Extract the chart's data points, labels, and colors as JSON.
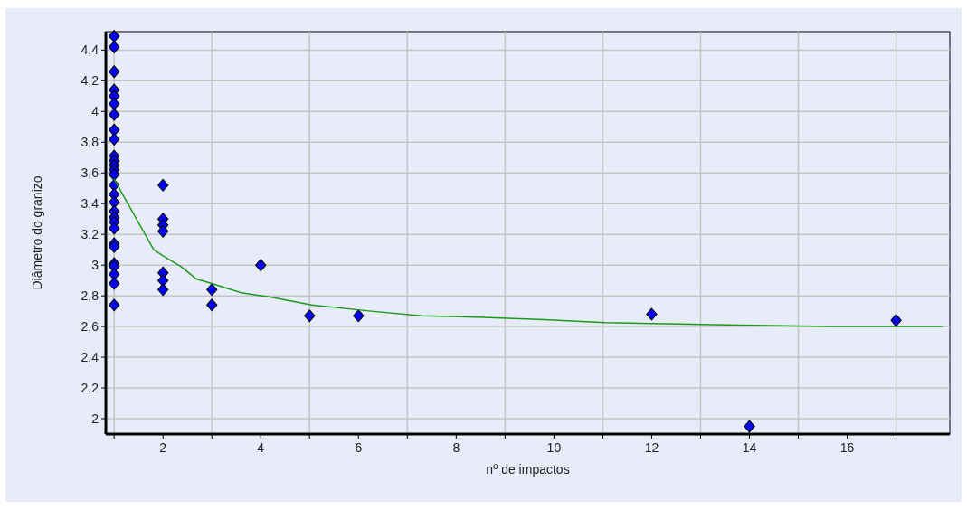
{
  "chart_data": {
    "type": "scatter",
    "xlabel": "nº de impactos",
    "ylabel": "Diâmetro do granizo",
    "xlim": [
      0.83,
      18.1
    ],
    "ylim": [
      1.9,
      4.52
    ],
    "xticks": [
      {
        "value": 1,
        "label": null
      },
      2,
      {
        "value": 3,
        "label": null
      },
      4,
      {
        "value": 5,
        "label": null
      },
      6,
      {
        "value": 7,
        "label": null
      },
      8,
      {
        "value": 9,
        "label": null
      },
      10,
      {
        "value": 11,
        "label": null
      },
      12,
      {
        "value": 13,
        "label": null
      },
      14,
      {
        "value": 15,
        "label": null
      },
      16,
      {
        "value": 17,
        "label": null
      }
    ],
    "yticks": [
      {
        "value": 2,
        "label": "2"
      },
      {
        "value": 2.2,
        "label": "2,2"
      },
      {
        "value": 2.4,
        "label": "2,4"
      },
      {
        "value": 2.6,
        "label": "2,6"
      },
      {
        "value": 2.8,
        "label": "2,8"
      },
      {
        "value": 3,
        "label": "3"
      },
      {
        "value": 3.2,
        "label": "3,2"
      },
      {
        "value": 3.4,
        "label": "3,4"
      },
      {
        "value": 3.6,
        "label": "3,6"
      },
      {
        "value": 3.8,
        "label": "3,8"
      },
      {
        "value": 4,
        "label": "4"
      },
      {
        "value": 4.2,
        "label": "4,2"
      },
      {
        "value": 4.4,
        "label": "4,4"
      }
    ],
    "grid": true,
    "marker": "diamond",
    "series": [
      {
        "color": "#0000ff",
        "x": [
          1,
          1,
          1,
          1,
          1,
          1,
          1,
          1,
          1,
          1,
          1,
          1,
          1,
          1,
          1,
          1,
          1,
          1,
          1,
          1,
          1,
          1,
          1,
          1,
          1,
          1,
          1,
          1,
          2,
          2,
          2,
          2,
          2,
          2,
          2,
          3,
          3,
          4,
          5,
          6,
          12,
          14,
          17
        ],
        "values": [
          4.49,
          4.42,
          4.26,
          4.14,
          4.1,
          4.05,
          3.98,
          3.88,
          3.82,
          3.71,
          3.68,
          3.65,
          3.62,
          3.59,
          3.52,
          3.46,
          3.41,
          3.35,
          3.31,
          3.28,
          3.24,
          3.14,
          3.12,
          3.01,
          2.99,
          2.94,
          2.88,
          2.74,
          3.52,
          3.3,
          3.26,
          3.22,
          2.95,
          2.9,
          2.84,
          2.84,
          2.74,
          3.0,
          2.67,
          2.67,
          2.68,
          1.95,
          2.64
        ]
      },
      {
        "type": "line",
        "color": "#1a9a1a",
        "marker": "none",
        "x": [
          1,
          1.81,
          2,
          2.37,
          2.68,
          3,
          3.6,
          4.22,
          5.04,
          6.26,
          7.3,
          8.55,
          9.8,
          11.05,
          12,
          13.8,
          15.64,
          17.96
        ],
        "values": [
          3.56,
          3.1,
          3.06,
          2.99,
          2.91,
          2.88,
          2.82,
          2.79,
          2.74,
          2.7,
          2.67,
          2.66,
          2.645,
          2.625,
          2.62,
          2.61,
          2.6,
          2.6
        ]
      }
    ]
  }
}
